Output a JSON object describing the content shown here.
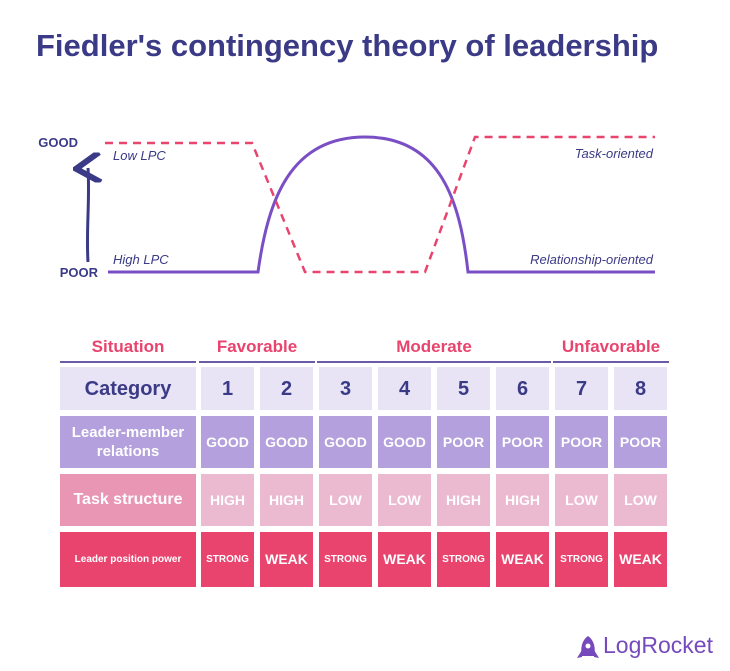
{
  "header": {
    "title": "Fiedler's contingency theory of leadership"
  },
  "chart": {
    "top_label": "GOOD",
    "bottom_label": "POOR",
    "curve_labels": {
      "low_lpc": "Low LPC",
      "high_lpc": "High LPC",
      "task": "Task-oriented",
      "relationship": "Relationship-oriented"
    }
  },
  "table": {
    "situation_header": "Situation",
    "situations": [
      "Favorable",
      "Moderate",
      "Unfavorable"
    ],
    "rows": [
      [
        "Category",
        1,
        2,
        3,
        4,
        5,
        6,
        7,
        8
      ],
      [
        "Leader-member relations",
        "GOOD",
        "GOOD",
        "GOOD",
        "GOOD",
        "POOR",
        "POOR",
        "POOR",
        "POOR"
      ],
      [
        "Task structure",
        "HIGH",
        "HIGH",
        "LOW",
        "LOW",
        "HIGH",
        "HIGH",
        "LOW",
        "LOW"
      ],
      [
        "Leader position power",
        "STRONG",
        "WEAK",
        "STRONG",
        "WEAK",
        "STRONG",
        "WEAK",
        "STRONG",
        "WEAK"
      ]
    ]
  },
  "logo": {
    "text": "LogRocket"
  }
}
